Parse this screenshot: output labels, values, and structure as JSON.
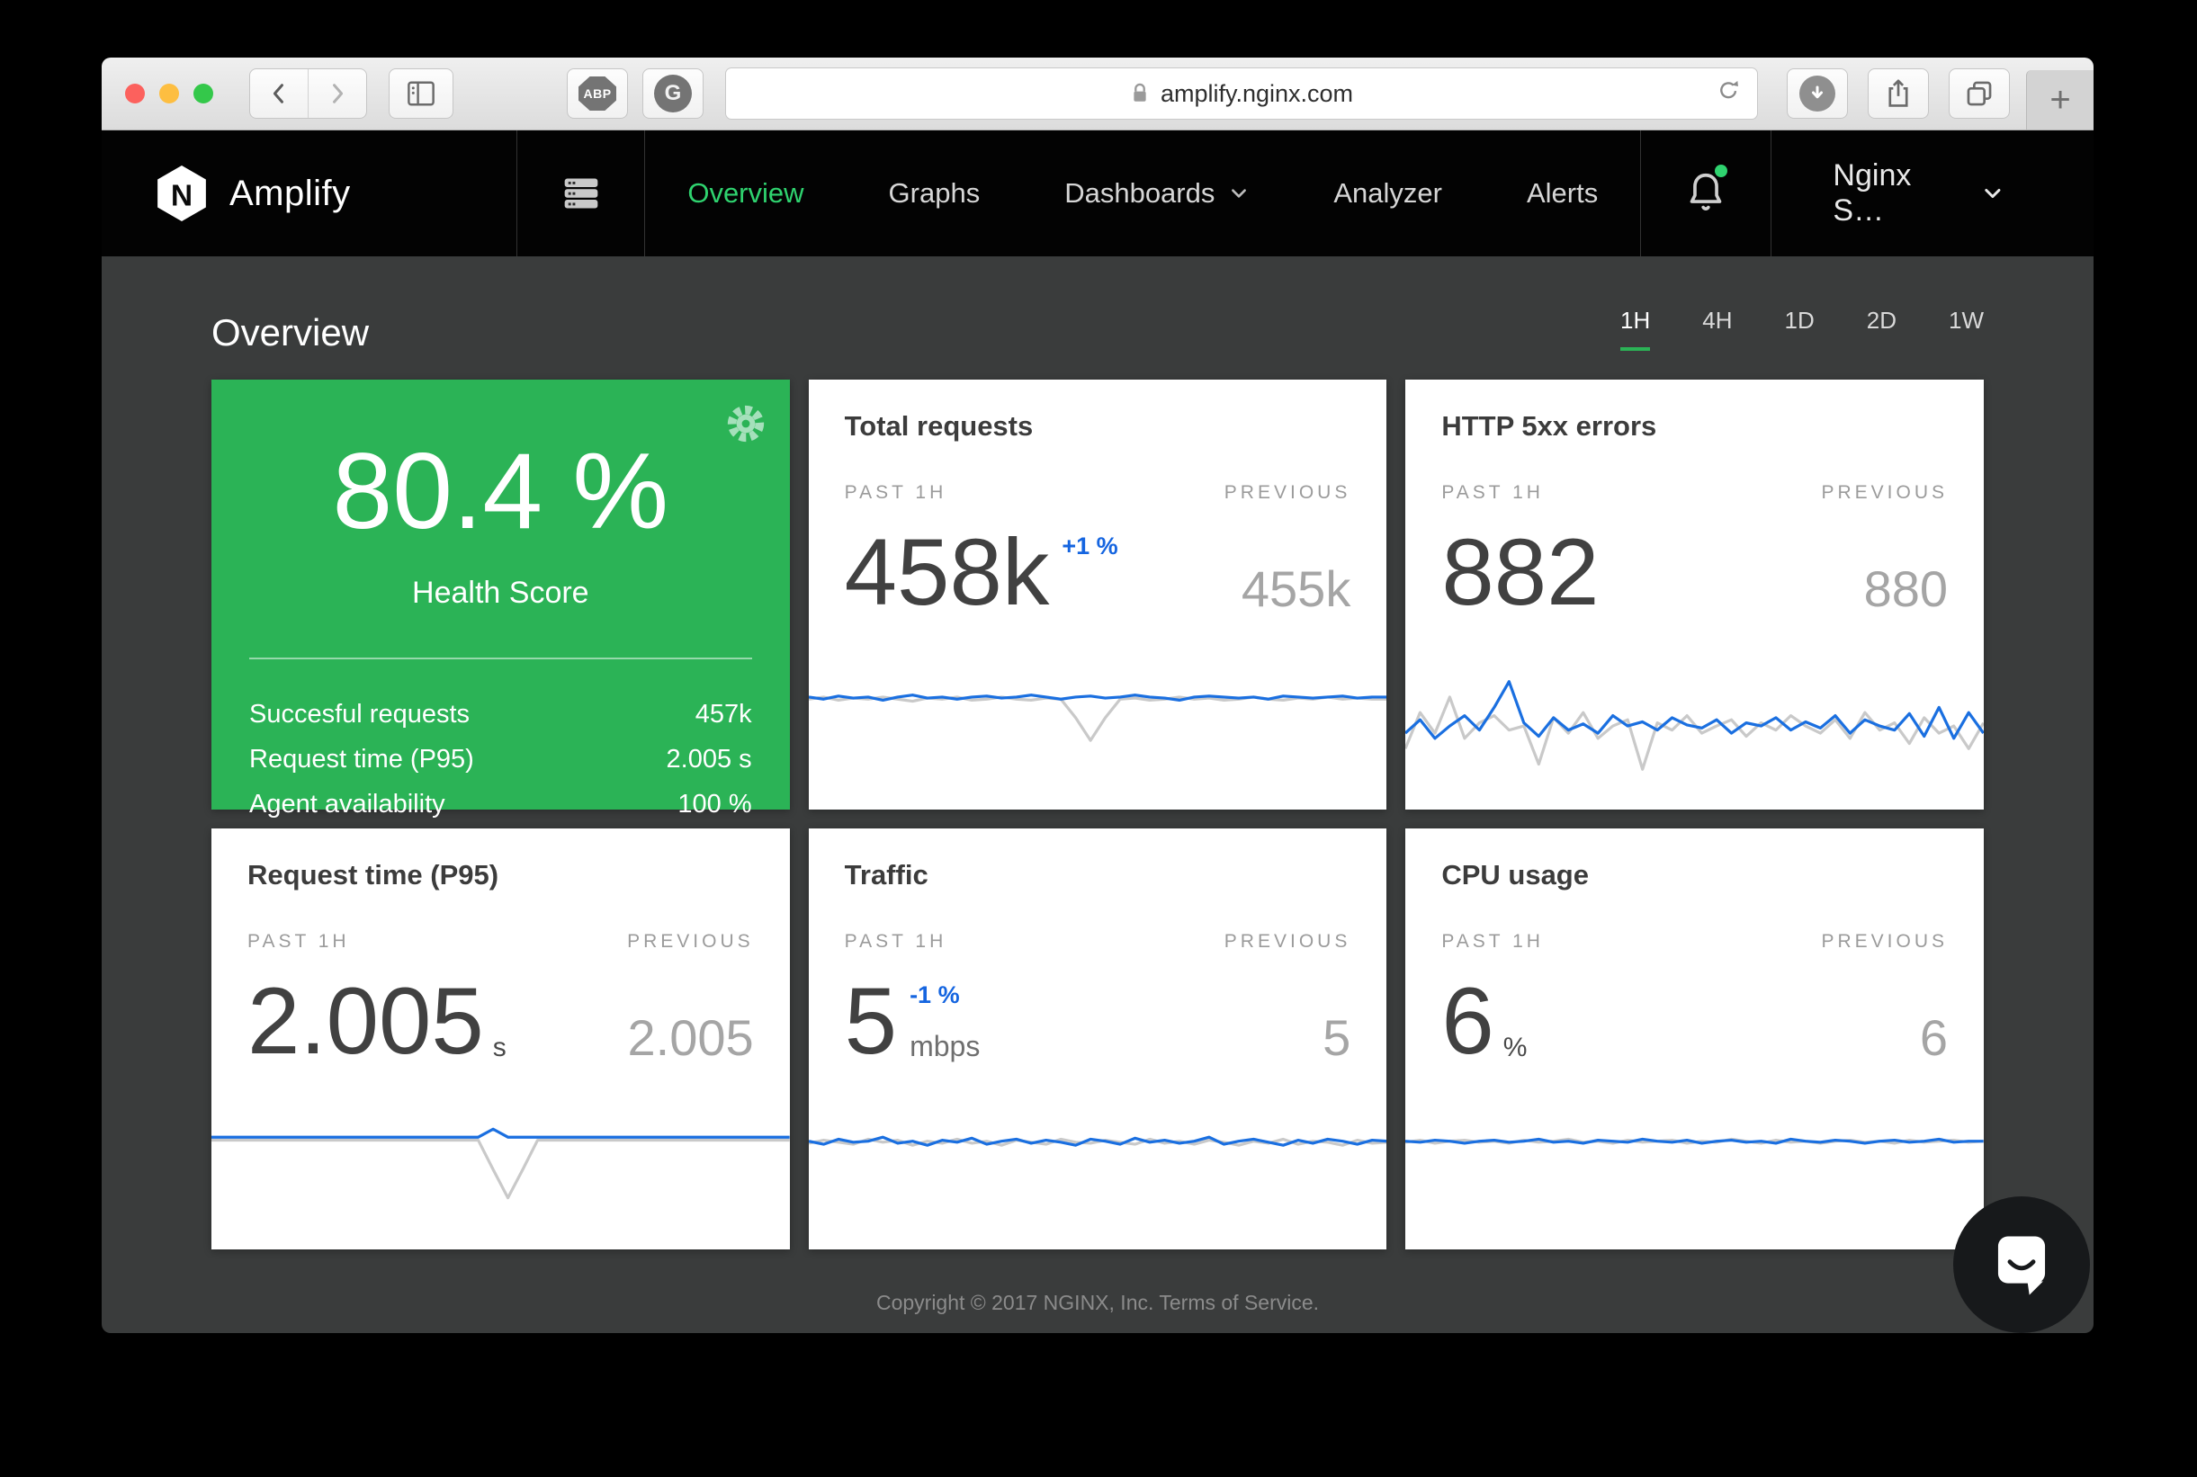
{
  "colors": {
    "green": "#2bb356",
    "nav_green": "#2fd36f",
    "badge_blue": "#1565e0",
    "spark_current": "#1a6fe0",
    "spark_previous": "#c9c9c9"
  },
  "browser": {
    "url": "amplify.nginx.com",
    "abp_label": "ABP",
    "g_label": "G",
    "new_tab_label": "+"
  },
  "nav": {
    "logo_letter": "N",
    "brand": "Amplify",
    "items": [
      "Overview",
      "Graphs",
      "Dashboards",
      "Analyzer",
      "Alerts"
    ],
    "account": "Nginx S…"
  },
  "page": {
    "title": "Overview",
    "ranges": [
      "1H",
      "4H",
      "1D",
      "2D",
      "1W"
    ],
    "active_range": "1H",
    "footer_copyright": "Copyright © 2017 NGINX, Inc.",
    "footer_terms": "Terms of Service."
  },
  "health": {
    "score": "80.4 %",
    "label": "Health Score",
    "rows": [
      {
        "label": "Succesful requests",
        "value": "457k"
      },
      {
        "label": "Request time (P95)",
        "value": "2.005 s"
      },
      {
        "label": "Agent availability",
        "value": "100 %"
      }
    ]
  },
  "cards": [
    {
      "title": "Total requests",
      "past_label": "PAST 1H",
      "prev_label": "PREVIOUS",
      "value": "458k",
      "badge": "+1 %",
      "previous": "455k",
      "spark": {
        "current": [
          0.2,
          0.22,
          0.19,
          0.21,
          0.2,
          0.23,
          0.2,
          0.18,
          0.21,
          0.2,
          0.22,
          0.2,
          0.19,
          0.21,
          0.2,
          0.18,
          0.2,
          0.22,
          0.2,
          0.19,
          0.21,
          0.2,
          0.18,
          0.2,
          0.21,
          0.23,
          0.2,
          0.19,
          0.2,
          0.21,
          0.2,
          0.22,
          0.19,
          0.2,
          0.21,
          0.2,
          0.19,
          0.21,
          0.2,
          0.2
        ],
        "previous": [
          0.22,
          0.2,
          0.23,
          0.21,
          0.22,
          0.2,
          0.22,
          0.24,
          0.21,
          0.22,
          0.2,
          0.23,
          0.22,
          0.2,
          0.22,
          0.23,
          0.21,
          0.22,
          0.4,
          0.62,
          0.4,
          0.22,
          0.21,
          0.23,
          0.22,
          0.2,
          0.22,
          0.21,
          0.23,
          0.22,
          0.2,
          0.22,
          0.23,
          0.21,
          0.22,
          0.2,
          0.22,
          0.21,
          0.22,
          0.22
        ]
      }
    },
    {
      "title": "HTTP 5xx errors",
      "past_label": "PAST 1H",
      "prev_label": "PREVIOUS",
      "value": "882",
      "previous": "880",
      "spark": {
        "current": [
          0.55,
          0.42,
          0.6,
          0.48,
          0.38,
          0.52,
          0.3,
          0.05,
          0.45,
          0.58,
          0.4,
          0.52,
          0.46,
          0.55,
          0.38,
          0.48,
          0.44,
          0.52,
          0.4,
          0.47,
          0.5,
          0.42,
          0.55,
          0.45,
          0.48,
          0.4,
          0.52,
          0.44,
          0.5,
          0.38,
          0.55,
          0.42,
          0.48,
          0.52,
          0.36,
          0.58,
          0.3,
          0.6,
          0.35,
          0.55
        ],
        "previous": [
          0.7,
          0.35,
          0.55,
          0.2,
          0.6,
          0.45,
          0.38,
          0.52,
          0.48,
          0.85,
          0.4,
          0.55,
          0.35,
          0.6,
          0.48,
          0.42,
          0.9,
          0.45,
          0.52,
          0.38,
          0.55,
          0.48,
          0.42,
          0.58,
          0.45,
          0.52,
          0.38,
          0.48,
          0.55,
          0.42,
          0.6,
          0.35,
          0.52,
          0.45,
          0.65,
          0.4,
          0.55,
          0.48,
          0.7,
          0.45
        ]
      }
    },
    {
      "title": "Request time (P95)",
      "past_label": "PAST 1H",
      "prev_label": "PREVIOUS",
      "value": "2.005",
      "unit": "s",
      "previous": "2.005",
      "spark": {
        "current": [
          0.18,
          0.18,
          0.18,
          0.18,
          0.18,
          0.18,
          0.18,
          0.18,
          0.18,
          0.18,
          0.18,
          0.18,
          0.18,
          0.18,
          0.18,
          0.18,
          0.18,
          0.18,
          0.18,
          0.1,
          0.18,
          0.18,
          0.18,
          0.18,
          0.18,
          0.18,
          0.18,
          0.18,
          0.18,
          0.18,
          0.18,
          0.18,
          0.18,
          0.18,
          0.18,
          0.18,
          0.18,
          0.18,
          0.18,
          0.18
        ],
        "previous": [
          0.21,
          0.21,
          0.21,
          0.21,
          0.21,
          0.21,
          0.21,
          0.21,
          0.21,
          0.21,
          0.21,
          0.21,
          0.21,
          0.21,
          0.21,
          0.21,
          0.21,
          0.21,
          0.21,
          0.5,
          0.78,
          0.5,
          0.21,
          0.21,
          0.21,
          0.21,
          0.21,
          0.21,
          0.21,
          0.21,
          0.21,
          0.21,
          0.21,
          0.21,
          0.21,
          0.21,
          0.21,
          0.21,
          0.21,
          0.21
        ]
      }
    },
    {
      "title": "Traffic",
      "past_label": "PAST 1H",
      "prev_label": "PREVIOUS",
      "value": "5",
      "badge": "-1 %",
      "unit": "mbps",
      "previous": "5",
      "spark": {
        "current": [
          0.22,
          0.25,
          0.2,
          0.23,
          0.22,
          0.18,
          0.24,
          0.22,
          0.26,
          0.21,
          0.23,
          0.19,
          0.25,
          0.22,
          0.2,
          0.24,
          0.21,
          0.23,
          0.26,
          0.2,
          0.22,
          0.25,
          0.19,
          0.23,
          0.21,
          0.24,
          0.22,
          0.18,
          0.25,
          0.22,
          0.2,
          0.23,
          0.26,
          0.21,
          0.24,
          0.2,
          0.22,
          0.25,
          0.21,
          0.22
        ],
        "previous": [
          0.24,
          0.21,
          0.23,
          0.25,
          0.2,
          0.23,
          0.21,
          0.26,
          0.22,
          0.24,
          0.2,
          0.24,
          0.22,
          0.26,
          0.21,
          0.23,
          0.25,
          0.2,
          0.23,
          0.24,
          0.21,
          0.23,
          0.25,
          0.2,
          0.24,
          0.22,
          0.25,
          0.21,
          0.23,
          0.26,
          0.22,
          0.24,
          0.2,
          0.25,
          0.22,
          0.23,
          0.26,
          0.21,
          0.24,
          0.23
        ]
      }
    },
    {
      "title": "CPU usage",
      "past_label": "PAST 1H",
      "prev_label": "PREVIOUS",
      "value": "6",
      "unit": "%",
      "previous": "6",
      "spark": {
        "current": [
          0.22,
          0.23,
          0.21,
          0.22,
          0.24,
          0.22,
          0.21,
          0.23,
          0.22,
          0.2,
          0.23,
          0.22,
          0.24,
          0.21,
          0.22,
          0.23,
          0.2,
          0.22,
          0.23,
          0.21,
          0.24,
          0.22,
          0.21,
          0.23,
          0.22,
          0.24,
          0.2,
          0.22,
          0.23,
          0.21,
          0.22,
          0.24,
          0.22,
          0.21,
          0.23,
          0.22,
          0.2,
          0.23,
          0.22,
          0.22
        ],
        "previous": [
          0.23,
          0.21,
          0.24,
          0.22,
          0.21,
          0.23,
          0.22,
          0.24,
          0.21,
          0.23,
          0.22,
          0.2,
          0.23,
          0.22,
          0.24,
          0.21,
          0.23,
          0.22,
          0.21,
          0.24,
          0.22,
          0.23,
          0.2,
          0.22,
          0.24,
          0.21,
          0.23,
          0.22,
          0.24,
          0.22,
          0.21,
          0.23,
          0.22,
          0.24,
          0.21,
          0.23,
          0.22,
          0.21,
          0.23,
          0.22
        ]
      }
    }
  ]
}
